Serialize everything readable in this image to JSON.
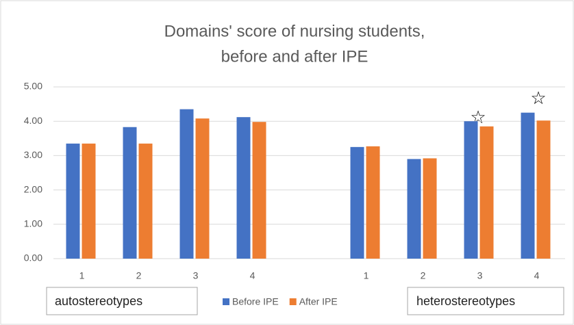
{
  "chart_data": {
    "type": "bar",
    "title": "Domains' score of nursing students,",
    "subtitle": "before and after IPE",
    "categories": [
      "1",
      "2",
      "3",
      "4",
      null,
      "1",
      "2",
      "3",
      "4"
    ],
    "series": [
      {
        "name": "Before IPE",
        "color": "#4472c4",
        "values": [
          3.35,
          3.83,
          4.35,
          4.12,
          null,
          3.25,
          2.9,
          4.0,
          4.25
        ]
      },
      {
        "name": "After IPE",
        "color": "#ed7d31",
        "values": [
          3.35,
          3.35,
          4.08,
          3.98,
          null,
          3.27,
          2.92,
          3.85,
          4.02
        ]
      }
    ],
    "group_labels": [
      "autostereotypes",
      "heterostereotypes"
    ],
    "ylim": [
      0,
      5
    ],
    "yticks": [
      {
        "value": 0,
        "label": "0.00"
      },
      {
        "value": 1,
        "label": "1.00"
      },
      {
        "value": 2,
        "label": "2.00"
      },
      {
        "value": 3,
        "label": "3.00"
      },
      {
        "value": 4,
        "label": "4.00"
      },
      {
        "value": 5,
        "label": "5.00"
      }
    ],
    "grid": true
  }
}
